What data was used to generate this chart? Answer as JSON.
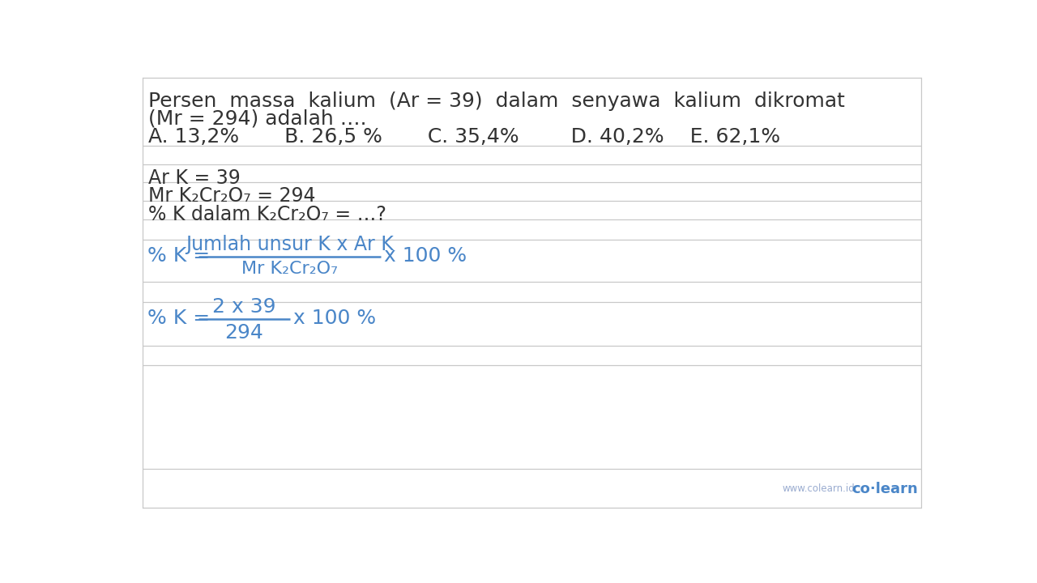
{
  "bg_color": "#ffffff",
  "text_color": "#333333",
  "blue_color": "#4a86c8",
  "line_color": "#c8c8c8",
  "title_line1": "Persen  massa  kalium  (Ar = 39)  dalam  senyawa  kalium  dikromat",
  "title_line2": "(Mr = 294) adalah ….",
  "options": "A. 13,2%       B. 26,5 %       C. 35,4%        D. 40,2%    E. 62,1%",
  "given1": "Ar K = 39",
  "given2": "Mr K₂Cr₂O₇ = 294",
  "given3": "% K dalam K₂Cr₂O₇ = …?",
  "formula_label": "% K = ",
  "formula_num": "Jumlah unsur K x Ar K",
  "formula_den": "Mr K₂Cr₂O₇",
  "formula_suffix": "x 100 %",
  "calc_label": "% K = ",
  "calc_num": "2 x 39",
  "calc_den": "294",
  "calc_suffix": "x 100 %",
  "watermark": "www.colearn.id",
  "brand": "co·learn",
  "title_fontsize": 18,
  "body_fontsize": 17,
  "formula_fontsize": 18,
  "small_fontsize": 15
}
